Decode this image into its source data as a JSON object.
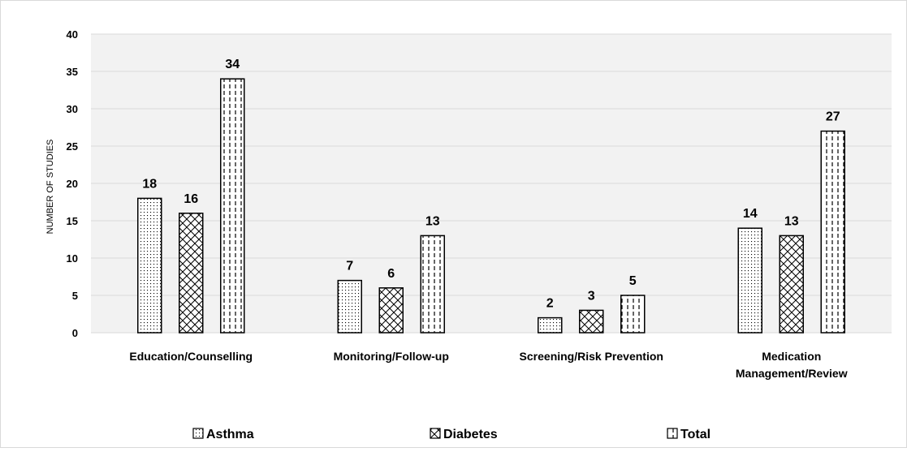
{
  "chart_data": {
    "type": "bar",
    "title": "",
    "xlabel": "",
    "ylabel": "NUMBER OF STUDIES",
    "ylim": [
      0,
      40
    ],
    "yticks": [
      0,
      5,
      10,
      15,
      20,
      25,
      30,
      35,
      40
    ],
    "grid": true,
    "legend_position": "bottom",
    "categories": [
      [
        "Education/Counselling"
      ],
      [
        "Monitoring/Follow-up"
      ],
      [
        "Screening/Risk Prevention"
      ],
      [
        "Medication",
        "Management/Review"
      ]
    ],
    "series": [
      {
        "name": "Asthma",
        "values": [
          18,
          7,
          2,
          14
        ],
        "pattern": "dots"
      },
      {
        "name": "Diabetes",
        "values": [
          16,
          6,
          3,
          13
        ],
        "pattern": "crosshatch"
      },
      {
        "name": "Total",
        "values": [
          34,
          13,
          5,
          27
        ],
        "pattern": "dashed-vertical"
      }
    ],
    "colors": {
      "plot_background": "#f2f2f2",
      "grid": "#d9d9d9",
      "bar_fill": "#ffffff",
      "bar_stroke": "#000000"
    }
  }
}
